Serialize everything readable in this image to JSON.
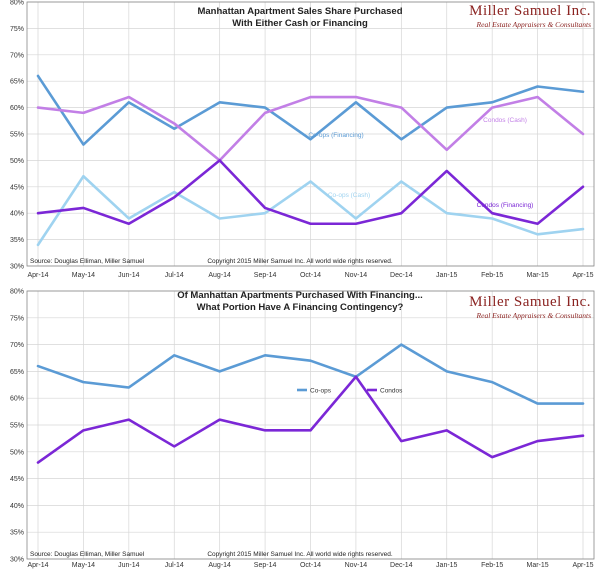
{
  "colors": {
    "coops_financing": "#5b9bd5",
    "condos_cash": "#c27fe6",
    "coops_cash": "#9fd3f0",
    "condos_financing": "#7b27d6",
    "logo": "#8b2321",
    "grid": "#d6d6d6",
    "axis": "#888888"
  },
  "logo": {
    "name": "Miller Samuel Inc.",
    "tagline": "Real Estate Appraisers & Consultants"
  },
  "chart_data": [
    {
      "type": "line",
      "title_line1": "Manhattan Apartment Sales Share Purchased",
      "title_line2": "With Either Cash or Financing",
      "categories": [
        "Apr-14",
        "May-14",
        "Jun-14",
        "Jul-14",
        "Aug-14",
        "Sep-14",
        "Oct-14",
        "Nov-14",
        "Dec-14",
        "Jan-15",
        "Feb-15",
        "Mar-15",
        "Apr-15"
      ],
      "yticks": [
        "30%",
        "35%",
        "40%",
        "45%",
        "50%",
        "55%",
        "60%",
        "65%",
        "70%",
        "75%",
        "80%"
      ],
      "ylim": [
        30,
        80
      ],
      "grid": true,
      "source": "Source: Douglas Elliman, Miller Samuel",
      "copyright": "Copyright 2015 Miller Samuel Inc.  All world wide rights reserved.",
      "series": [
        {
          "name": "Co-ops (Financing)",
          "color_key": "coops_financing",
          "values": [
            66,
            53,
            61,
            56,
            61,
            60,
            54,
            61,
            54,
            60,
            61,
            64,
            63
          ]
        },
        {
          "name": "Condos (Cash)",
          "color_key": "condos_cash",
          "values": [
            60,
            59,
            62,
            57,
            50,
            59,
            62,
            62,
            60,
            52,
            60,
            62,
            55
          ]
        },
        {
          "name": "Co-ops (Cash)",
          "color_key": "coops_cash",
          "values": [
            34,
            47,
            39,
            44,
            39,
            40,
            46,
            39,
            46,
            40,
            39,
            36,
            37
          ]
        },
        {
          "name": "Condos (Financing)",
          "color_key": "condos_financing",
          "values": [
            40,
            41,
            38,
            43,
            50,
            41,
            38,
            38,
            40,
            48,
            40,
            38,
            45
          ]
        }
      ]
    },
    {
      "type": "line",
      "title_line1": "Of Manhattan Apartments Purchased With Financing...",
      "title_line2": "What Portion Have A Financing Contingency?",
      "categories": [
        "Apr-14",
        "May-14",
        "Jun-14",
        "Jul-14",
        "Aug-14",
        "Sep-14",
        "Oct-14",
        "Nov-14",
        "Dec-14",
        "Jan-15",
        "Feb-15",
        "Mar-15",
        "Apr-15"
      ],
      "yticks": [
        "30%",
        "35%",
        "40%",
        "45%",
        "50%",
        "55%",
        "60%",
        "65%",
        "70%",
        "75%",
        "80%"
      ],
      "ylim": [
        30,
        80
      ],
      "grid": true,
      "legend": "center-right",
      "source": "Source: Douglas Elliman, Miller Samuel",
      "copyright": "Copyright 2015 Miller Samuel Inc.  All world wide rights reserved.",
      "series": [
        {
          "name": "Co-ops",
          "color_key": "coops_financing",
          "values": [
            66,
            63,
            62,
            68,
            65,
            68,
            67,
            64,
            70,
            65,
            63,
            59,
            59
          ]
        },
        {
          "name": "Condos",
          "color_key": "condos_financing",
          "values": [
            48,
            54,
            56,
            51,
            56,
            54,
            54,
            64,
            52,
            54,
            49,
            52,
            53
          ]
        }
      ]
    }
  ]
}
